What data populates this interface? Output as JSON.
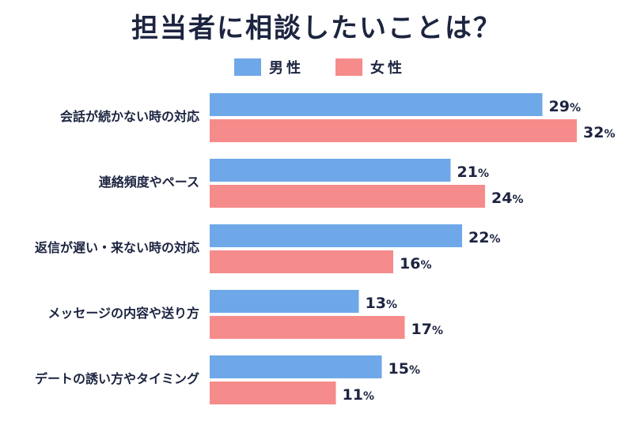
{
  "title": "担当者に相談したいことは？",
  "legend": [
    {
      "name": "男性",
      "color": "#6fa8e8"
    },
    {
      "name": "女性",
      "color": "#f68b8b"
    }
  ],
  "chart_data": {
    "type": "bar",
    "orientation": "horizontal",
    "title": "担当者に相談したいことは？",
    "categories": [
      "会話が続かない時の対応",
      "連絡頻度やペース",
      "返信が遅い・来ない時の対応",
      "メッセージの内容や送り方",
      "デートの誘い方やタイミング"
    ],
    "series": [
      {
        "name": "男性",
        "color": "#6fa8e8",
        "values": [
          29,
          21,
          22,
          13,
          15
        ]
      },
      {
        "name": "女性",
        "color": "#f68b8b",
        "values": [
          32,
          24,
          16,
          17,
          11
        ]
      }
    ],
    "unit": "%",
    "xlim": [
      0,
      35
    ],
    "grid": false,
    "legend_position": "top"
  }
}
